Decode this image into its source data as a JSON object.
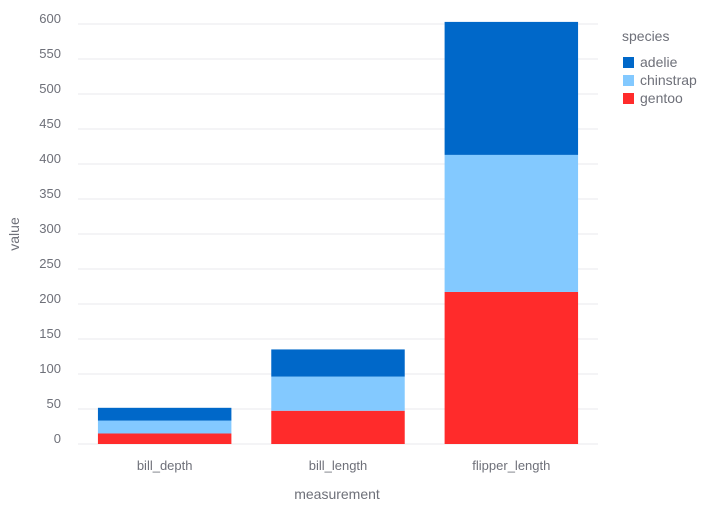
{
  "chart_data": {
    "type": "bar",
    "stacked": true,
    "categories": [
      "bill_depth",
      "bill_length",
      "flipper_length"
    ],
    "series": [
      {
        "name": "gentoo",
        "values": [
          15,
          47.5,
          217.2
        ],
        "color": "#ff2b2b"
      },
      {
        "name": "chinstrap",
        "values": [
          18.4,
          48.8,
          195.8
        ],
        "color": "#83c9ff"
      },
      {
        "name": "adelie",
        "values": [
          18.3,
          38.8,
          190
        ],
        "color": "#0068c9"
      }
    ],
    "legend": {
      "title": "species",
      "entries": [
        "adelie",
        "chinstrap",
        "gentoo"
      ],
      "placement": "right"
    },
    "xlabel": "measurement",
    "ylabel": "value",
    "ylim": [
      0,
      600
    ],
    "yticks": [
      0,
      50,
      100,
      150,
      200,
      250,
      300,
      350,
      400,
      450,
      500,
      550,
      600
    ],
    "grid": true
  }
}
